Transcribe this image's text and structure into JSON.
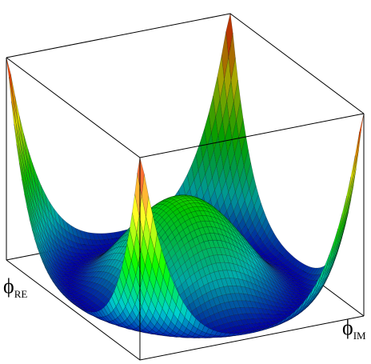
{
  "axes": {
    "x": {
      "symbol": "ϕ",
      "subscript": "RE"
    },
    "y": {
      "symbol": "ϕ",
      "subscript": "IM"
    }
  }
}
